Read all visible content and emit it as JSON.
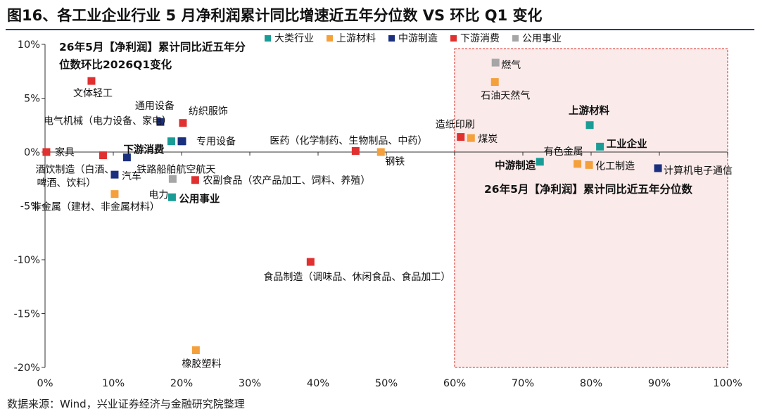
{
  "figure_title": "图16、各工业企业行业 5 月净利润累计同比增速近五年分位数  VS  环比 Q1 变化",
  "source": "数据来源：Wind，兴业证券经济与金融研究院整理",
  "colors": {
    "大类行业": "#1a9c96",
    "上游材料": "#f4a03c",
    "中游制造": "#1b2f7f",
    "下游消费": "#e03030",
    "公用事业": "#a6a6a6",
    "highlight_fill": "#fbeaea",
    "highlight_border": "#e0504a",
    "title_rule": "#1f3f7a"
  },
  "chart_data": {
    "type": "scatter",
    "title": "",
    "annotation_y": "26年5月【净利润】累计同比近五年分位数环比2026Q1变化",
    "annotation_x": "26年5月【净利润】累计同比近五年分位数",
    "xlim": [
      0,
      100
    ],
    "ylim": [
      -20,
      10
    ],
    "x_ticks": [
      "0%",
      "10%",
      "20%",
      "30%",
      "40%",
      "50%",
      "60%",
      "70%",
      "80%",
      "90%",
      "100%"
    ],
    "y_ticks": [
      "10%",
      "5%",
      "0%",
      "-5%",
      "-10%",
      "-15%",
      "-20%"
    ],
    "highlight_region": {
      "x": [
        60,
        100
      ],
      "y": [
        -20,
        9.6
      ]
    },
    "legend": [
      "大类行业",
      "上游材料",
      "中游制造",
      "下游消费",
      "公用事业"
    ],
    "points": [
      {
        "label": "文体轻工",
        "cat": "下游消费",
        "x": 6.8,
        "y": 6.6
      },
      {
        "label": "通用设备",
        "cat": "中游制造",
        "x": 16.9,
        "y": 2.8
      },
      {
        "label": "纺织服饰",
        "cat": "下游消费",
        "x": 20.2,
        "y": 2.7
      },
      {
        "label": "电气机械（电力设备、家电）",
        "cat": "中游制造",
        "x": 20.0,
        "y": 1.0
      },
      {
        "label": "专用设备",
        "cat": "中游制造",
        "x": 20.1,
        "y": 1.0
      },
      {
        "label": "下游消费",
        "cat": "大类行业",
        "x": 18.5,
        "y": 1.0,
        "bold": true
      },
      {
        "label": "家具",
        "cat": "下游消费",
        "x": 0.2,
        "y": 0.0
      },
      {
        "label": "酒饮制造（白酒、啤酒、饮料）",
        "cat": "下游消费",
        "x": 8.5,
        "y": -0.3
      },
      {
        "label": "铁路船舶航空航天",
        "cat": "中游制造",
        "x": 12.0,
        "y": -0.5
      },
      {
        "label": "汽车",
        "cat": "中游制造",
        "x": 10.2,
        "y": -2.1
      },
      {
        "label": "电力",
        "cat": "公用事业",
        "x": 18.7,
        "y": -2.5
      },
      {
        "label": "农副食品（农产品加工、饲料、养殖）",
        "cat": "下游消费",
        "x": 22.0,
        "y": -2.6
      },
      {
        "label": "非金属（建材、非金属材料）",
        "cat": "上游材料",
        "x": 10.2,
        "y": -3.9
      },
      {
        "label": "公用事业",
        "cat": "大类行业",
        "x": 18.6,
        "y": -4.2,
        "bold": true
      },
      {
        "label": "医药（化学制药、生物制品、中药）",
        "cat": "下游消费",
        "x": 45.5,
        "y": 0.1
      },
      {
        "label": "钢铁",
        "cat": "上游材料",
        "x": 49.2,
        "y": 0.0
      },
      {
        "label": "食品制造（调味品、休闲食品、食品加工）",
        "cat": "下游消费",
        "x": 38.9,
        "y": -10.2
      },
      {
        "label": "橡胶塑料",
        "cat": "上游材料",
        "x": 22.1,
        "y": -18.4
      },
      {
        "label": "燃气",
        "cat": "公用事业",
        "x": 66.0,
        "y": 8.3
      },
      {
        "label": "石油天然气",
        "cat": "上游材料",
        "x": 65.9,
        "y": 6.5
      },
      {
        "label": "上游材料",
        "cat": "大类行业",
        "x": 79.8,
        "y": 2.5,
        "bold": true
      },
      {
        "label": "工业企业",
        "cat": "大类行业",
        "x": 81.3,
        "y": 0.5,
        "bold": true
      },
      {
        "label": "造纸印刷",
        "cat": "下游消费",
        "x": 60.9,
        "y": 1.4
      },
      {
        "label": "煤炭",
        "cat": "上游材料",
        "x": 62.4,
        "y": 1.3
      },
      {
        "label": "有色金属",
        "cat": "上游材料",
        "x": 78.0,
        "y": -1.1
      },
      {
        "label": "化工制造",
        "cat": "上游材料",
        "x": 79.7,
        "y": -1.2
      },
      {
        "label": "中游制造",
        "cat": "大类行业",
        "x": 72.5,
        "y": -0.9,
        "bold": true
      },
      {
        "label": "计算机电子通信",
        "cat": "中游制造",
        "x": 89.8,
        "y": -1.5
      }
    ]
  }
}
